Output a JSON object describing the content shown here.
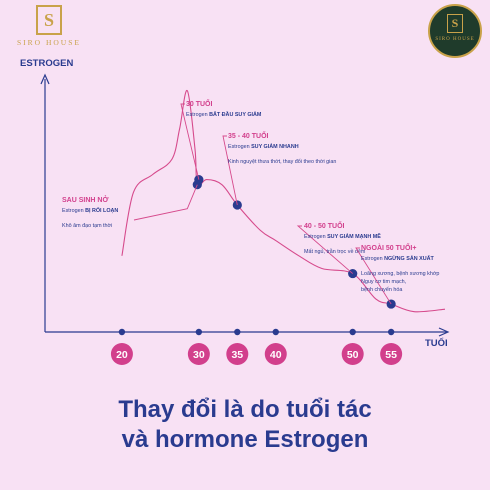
{
  "brand": {
    "name": "SIRO HOUSE",
    "monogram": "S"
  },
  "title": [
    "Thay đổi là do tuổi tác",
    "và hormone Estrogen"
  ],
  "chart_data": {
    "type": "line",
    "ylabel": "ESTROGEN",
    "xlabel": "TUỔI",
    "x_ticks": [
      20,
      30,
      35,
      40,
      50,
      55
    ],
    "series": [
      {
        "points": [
          [
            20,
            0.3
          ],
          [
            21.5,
            0.55
          ],
          [
            24,
            0.62
          ],
          [
            26.5,
            0.68
          ],
          [
            27.5,
            0.8
          ],
          [
            28.5,
            0.95
          ],
          [
            29.5,
            0.72
          ],
          [
            29.8,
            0.58
          ],
          [
            31,
            0.6
          ],
          [
            33,
            0.58
          ],
          [
            35,
            0.5
          ],
          [
            38,
            0.4
          ],
          [
            40,
            0.36
          ],
          [
            43,
            0.3
          ],
          [
            46,
            0.25
          ],
          [
            50,
            0.23
          ],
          [
            53,
            0.13
          ],
          [
            55,
            0.11
          ],
          [
            58,
            0.08
          ],
          [
            62,
            0.09
          ]
        ]
      }
    ],
    "markers": [
      {
        "x": 29.8,
        "y": 0.58
      },
      {
        "x": 30,
        "y": 0.6
      },
      {
        "x": 35,
        "y": 0.5
      },
      {
        "x": 50,
        "y": 0.23
      },
      {
        "x": 55,
        "y": 0.11
      }
    ],
    "annotations": [
      {
        "title": "SAU SINH NỞ",
        "sub_prefix": "Estrogen",
        "sub_bold": "BỊ RỐI LOẠN",
        "note": "Khô âm đạo tạm thời"
      },
      {
        "title": "30 TUỔI",
        "sub_prefix": "Estrogen",
        "sub_bold": "BẮT ĐẦU SUY GIẢM",
        "note": ""
      },
      {
        "title": "35 - 40 TUỔI",
        "sub_prefix": "Estrogen",
        "sub_bold": "SUY GIẢM NHANH",
        "note": "Kinh nguyệt thưa thớt, thay đổi theo thời gian"
      },
      {
        "title": "40 - 50 TUỔI",
        "sub_prefix": "Estrogen",
        "sub_bold": "SUY GIẢM MẠNH MẼ",
        "note": "Mất ngủ, trằn trọc về đêm"
      },
      {
        "title": "NGOÀI 50 TUỔI+",
        "sub_prefix": "Estrogen",
        "sub_bold": "NGỪNG SẢN XUẤT",
        "note": "Loãng xương, bệnh xương khớp|Nguy cơ tim mạch,|bệnh chuyển hóa"
      }
    ]
  },
  "colors": {
    "background": "#f8e1f4",
    "curve": "#d64a8c",
    "axis": "#2a3b8f",
    "marker": "#2a3b8f",
    "tick_circle": "#d23f8c",
    "annotation_title": "#d23f8c",
    "text": "#2a3b8f",
    "gold": "#c9a24a"
  }
}
